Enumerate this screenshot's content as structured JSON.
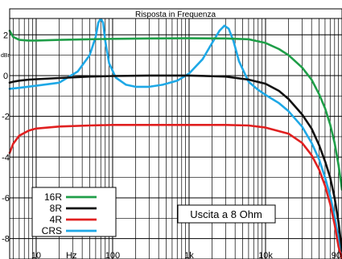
{
  "chart_data": {
    "type": "line",
    "title": "Risposta in Frequenza",
    "ylabel": "dBr",
    "x_unit_label": "Hz",
    "xscale": "log",
    "xlim": [
      4.5,
      100000
    ],
    "ylim": [
      -9,
      2.8
    ],
    "grid": true,
    "y_ticks": [
      2,
      0,
      -2,
      -4,
      -6,
      -8
    ],
    "x_ticks": [
      {
        "value": 10,
        "label": "10"
      },
      {
        "value": 100,
        "label": "100"
      },
      {
        "value": 1000,
        "label": "1k"
      },
      {
        "value": 10000,
        "label": "10k"
      },
      {
        "value": 90000,
        "label": "90k"
      }
    ],
    "annotation": "Uscita a 8 Ohm",
    "legend_position": "bottom-left",
    "series": [
      {
        "name": "16R",
        "color": "#1f9e48",
        "x": [
          4.5,
          5,
          6,
          8,
          10,
          20,
          50,
          100,
          300,
          1000,
          3000,
          6000,
          10000,
          15000,
          20000,
          30000,
          40000,
          50000,
          60000,
          70000,
          80000,
          90000,
          100000
        ],
        "y": [
          2.2,
          1.9,
          1.75,
          1.72,
          1.72,
          1.75,
          1.78,
          1.8,
          1.82,
          1.83,
          1.82,
          1.78,
          1.6,
          1.3,
          1.0,
          0.4,
          -0.2,
          -0.9,
          -1.6,
          -2.4,
          -3.3,
          -4.4,
          -5.6
        ]
      },
      {
        "name": "8R",
        "color": "#111111",
        "x": [
          4.5,
          5,
          6,
          8,
          10,
          20,
          50,
          100,
          300,
          1000,
          3000,
          6000,
          10000,
          15000,
          20000,
          30000,
          40000,
          50000,
          60000,
          70000,
          80000,
          90000,
          100000
        ],
        "y": [
          -0.35,
          -0.3,
          -0.25,
          -0.2,
          -0.18,
          -0.12,
          -0.05,
          -0.02,
          0.0,
          0.0,
          -0.05,
          -0.2,
          -0.4,
          -0.75,
          -1.15,
          -1.9,
          -2.6,
          -3.4,
          -4.2,
          -5.0,
          -6.0,
          -7.2,
          -8.6
        ]
      },
      {
        "name": "4R",
        "color": "#e02020",
        "x": [
          4.5,
          5,
          6,
          8,
          10,
          20,
          50,
          100,
          300,
          1000,
          3000,
          6000,
          10000,
          20000,
          30000,
          40000,
          50000,
          60000,
          70000,
          80000,
          90000,
          100000
        ],
        "y": [
          -3.8,
          -3.35,
          -2.95,
          -2.7,
          -2.6,
          -2.5,
          -2.45,
          -2.42,
          -2.42,
          -2.42,
          -2.42,
          -2.45,
          -2.55,
          -2.85,
          -3.3,
          -3.9,
          -4.6,
          -5.4,
          -6.3,
          -7.3,
          -8.4,
          -9.0
        ]
      },
      {
        "name": "CRS",
        "color": "#1ea8e6",
        "x": [
          4.5,
          6,
          10,
          20,
          35,
          50,
          60,
          65,
          70,
          75,
          80,
          90,
          110,
          150,
          200,
          300,
          450,
          700,
          1000,
          1500,
          2000,
          2500,
          2900,
          3300,
          3800,
          4500,
          6000,
          8000,
          10000,
          15000,
          20000,
          30000,
          40000,
          50000,
          60000,
          70000,
          80000,
          90000,
          100000
        ],
        "y": [
          -0.65,
          -0.6,
          -0.5,
          -0.35,
          0.2,
          1.0,
          1.9,
          2.6,
          2.8,
          2.6,
          1.7,
          0.6,
          -0.1,
          -0.45,
          -0.55,
          -0.55,
          -0.45,
          -0.25,
          0.1,
          0.8,
          1.6,
          2.2,
          2.45,
          2.3,
          1.7,
          0.7,
          -0.3,
          -0.7,
          -0.95,
          -1.35,
          -1.75,
          -2.5,
          -3.3,
          -4.1,
          -5.0,
          -5.9,
          -6.9,
          -8.0,
          -9.0
        ]
      }
    ]
  }
}
